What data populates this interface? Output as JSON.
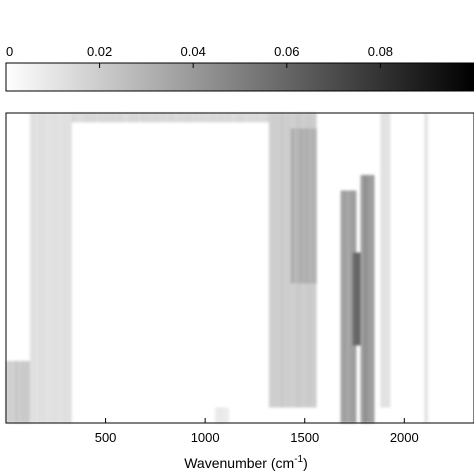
{
  "chart_data": {
    "type": "heatmap",
    "title": "",
    "xlabel": {
      "main": "Wavenumber (cm",
      "sup": "-1",
      "close": ")"
    },
    "ylabel": "",
    "xlim": [
      0,
      2350
    ],
    "x_ticks": [
      {
        "value": 500,
        "label": "500"
      },
      {
        "value": 1000,
        "label": "1000"
      },
      {
        "value": 1500,
        "label": "1500"
      },
      {
        "value": 2000,
        "label": "2000"
      }
    ],
    "colorbar": {
      "range": [
        0,
        0.1
      ],
      "color_low": "#ffffff",
      "color_high": "#000000",
      "ticks": [
        {
          "value": 0,
          "label": "0"
        },
        {
          "value": 0.02,
          "label": "0.02"
        },
        {
          "value": 0.04,
          "label": "0.04"
        },
        {
          "value": 0.06,
          "label": "0.06"
        },
        {
          "value": 0.08,
          "label": "0.08"
        }
      ]
    },
    "bands": [
      {
        "x_start": 0,
        "x_end": 120,
        "y_start": 0.0,
        "y_end": 0.2,
        "intensity": 0.02
      },
      {
        "x_start": 120,
        "x_end": 330,
        "y_start": 0.0,
        "y_end": 1.0,
        "intensity": 0.012
      },
      {
        "x_start": 330,
        "x_end": 1550,
        "y_start": 0.97,
        "y_end": 1.0,
        "intensity": 0.015
      },
      {
        "x_start": 1050,
        "x_end": 1120,
        "y_start": 0.0,
        "y_end": 0.05,
        "intensity": 0.008
      },
      {
        "x_start": 1320,
        "x_end": 1560,
        "y_start": 0.05,
        "y_end": 1.0,
        "intensity": 0.02
      },
      {
        "x_start": 1430,
        "x_end": 1560,
        "y_start": 0.45,
        "y_end": 0.95,
        "intensity": 0.03
      },
      {
        "x_start": 1680,
        "x_end": 1760,
        "y_start": 0.0,
        "y_end": 0.75,
        "intensity": 0.035
      },
      {
        "x_start": 1740,
        "x_end": 1800,
        "y_start": 0.25,
        "y_end": 0.55,
        "intensity": 0.06
      },
      {
        "x_start": 1780,
        "x_end": 1850,
        "y_start": 0.0,
        "y_end": 0.8,
        "intensity": 0.04
      },
      {
        "x_start": 1880,
        "x_end": 1930,
        "y_start": 0.05,
        "y_end": 1.0,
        "intensity": 0.012
      },
      {
        "x_start": 2100,
        "x_end": 2120,
        "y_start": 0.0,
        "y_end": 1.0,
        "intensity": 0.01
      }
    ],
    "grid": false
  }
}
